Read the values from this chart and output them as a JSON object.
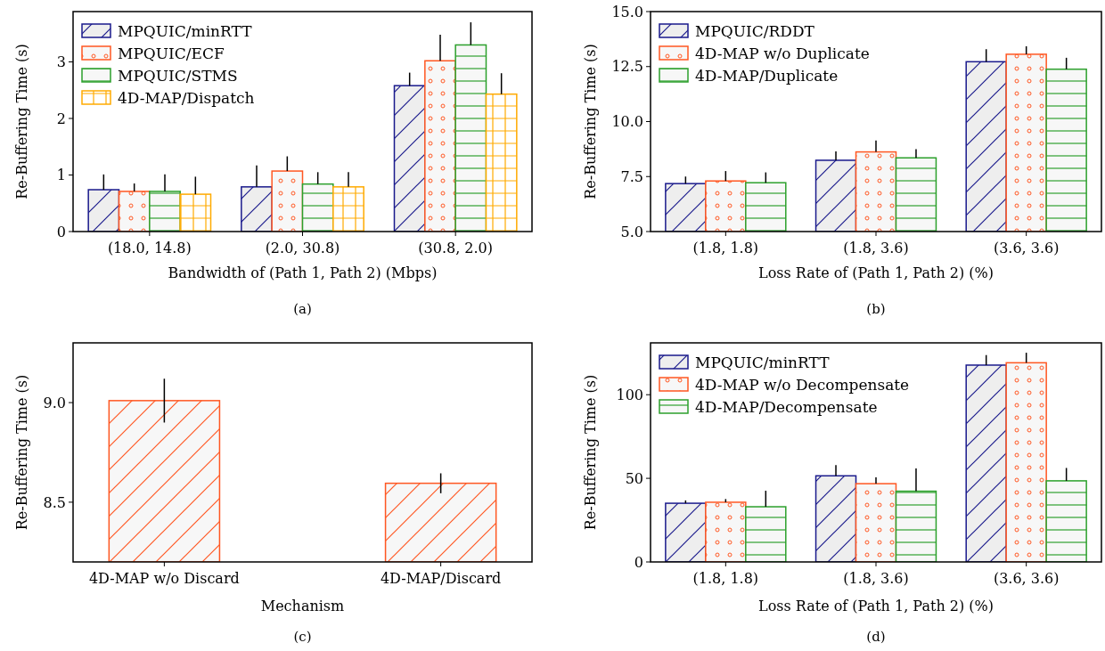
{
  "chart_data": [
    {
      "type": "bar",
      "xlabel": "Bandwidth of (Path 1, Path 2) (Mbps)",
      "ylabel": "Re-Buffering Time (s)",
      "annotations": [
        "(a)"
      ],
      "categories": [
        "(18.0, 14.8)",
        "(2.0, 30.8)",
        "(30.8, 2.0)"
      ],
      "ylim": [
        0,
        3.89
      ],
      "yticks": [
        0,
        1,
        2,
        3
      ],
      "legend": "top left",
      "grid": false,
      "series": [
        {
          "name": "MPQUIC/minRTT",
          "color": "#1a1a8c",
          "values": [
            0.74,
            0.79,
            2.58
          ],
          "errors": [
            [
              0.74,
              1.01
            ],
            [
              0.79,
              1.17
            ],
            [
              2.58,
              2.81
            ]
          ]
        },
        {
          "name": "MPQUIC/ECF",
          "color": "#ff5722",
          "values": [
            0.71,
            1.07,
            3.02
          ],
          "errors": [
            [
              0.71,
              0.85
            ],
            [
              1.07,
              1.33
            ],
            [
              3.02,
              3.48
            ]
          ]
        },
        {
          "name": "MPQUIC/STMS",
          "color": "#2ca02c",
          "values": [
            0.71,
            0.84,
            3.3
          ],
          "errors": [
            [
              0.71,
              1.01
            ],
            [
              0.84,
              1.05
            ],
            [
              3.3,
              3.7
            ]
          ]
        },
        {
          "name": "4D-MAP/Dispatch",
          "color": "#ffaa00",
          "values": [
            0.66,
            0.79,
            2.43
          ],
          "errors": [
            [
              0.66,
              0.97
            ],
            [
              0.79,
              1.05
            ],
            [
              2.43,
              2.8
            ]
          ]
        }
      ]
    },
    {
      "type": "bar",
      "xlabel": "Loss Rate of (Path 1, Path 2) (%)",
      "ylabel": "Re-Buffering Time (s)",
      "annotations": [
        "(b)"
      ],
      "categories": [
        "(1.8, 1.8)",
        "(1.8, 3.6)",
        "(3.6, 3.6)"
      ],
      "ylim": [
        5,
        15
      ],
      "yticks": [
        {
          "value": 5,
          "label": "5.0"
        },
        {
          "value": 7.5,
          "label": "7.5"
        },
        {
          "value": 10,
          "label": "10.0"
        },
        {
          "value": 12.5,
          "label": "12.5"
        },
        {
          "value": 15,
          "label": "15.0"
        }
      ],
      "legend": "top left",
      "grid": false,
      "series": [
        {
          "name": "MPQUIC/RDDT",
          "color": "#1a1a8c",
          "values": [
            7.18,
            8.24,
            12.72
          ],
          "errors": [
            [
              7.18,
              7.5
            ],
            [
              8.24,
              8.64
            ],
            [
              12.72,
              13.29
            ]
          ]
        },
        {
          "name": "4D-MAP w/o Duplicate",
          "color": "#ff5722",
          "values": [
            7.3,
            8.62,
            13.06
          ],
          "errors": [
            [
              7.3,
              7.75
            ],
            [
              8.62,
              9.14
            ],
            [
              13.06,
              13.42
            ]
          ]
        },
        {
          "name": "4D-MAP/Duplicate",
          "color": "#2ca02c",
          "values": [
            7.22,
            8.35,
            12.38
          ],
          "errors": [
            [
              7.22,
              7.69
            ],
            [
              8.35,
              8.75
            ],
            [
              12.38,
              12.9
            ]
          ]
        }
      ]
    },
    {
      "type": "bar",
      "xlabel": "Mechanism",
      "ylabel": "Re-Buffering Time (s)",
      "annotations": [
        "(c)"
      ],
      "categories": [
        "4D-MAP w/o Discard",
        "4D-MAP/Discard"
      ],
      "ylim": [
        8.2,
        9.3
      ],
      "yticks": [
        {
          "value": 8.5,
          "label": "8.5"
        },
        {
          "value": 9,
          "label": "9.0"
        }
      ],
      "grid": false,
      "series": [
        {
          "color": "#ff5722",
          "values": [
            9.01,
            8.595
          ],
          "errors": [
            0.11,
            0.05
          ]
        }
      ]
    },
    {
      "type": "bar",
      "xlabel": "Loss Rate of (Path 1, Path 2) (%)",
      "ylabel": "Re-Buffering Time (s)",
      "annotations": [
        "(d)"
      ],
      "categories": [
        "(1.8, 1.8)",
        "(1.8, 3.6)",
        "(3.6, 3.6)"
      ],
      "ylim": [
        0,
        131
      ],
      "yticks": [
        0,
        50,
        100
      ],
      "legend": "top left",
      "grid": false,
      "series": [
        {
          "name": "MPQUIC/minRTT",
          "color": "#1a1a8c",
          "values": [
            35.1,
            51.5,
            117.7
          ],
          "errors": [
            [
              35.1,
              36.8
            ],
            [
              51.5,
              57.9
            ],
            [
              117.7,
              123.7
            ]
          ]
        },
        {
          "name": "4D-MAP w/o Decompensate",
          "color": "#ff5722",
          "values": [
            35.7,
            46.8,
            119.1
          ],
          "errors": [
            [
              35.7,
              37.6
            ],
            [
              46.8,
              50.6
            ],
            [
              119.1,
              125.1
            ]
          ]
        },
        {
          "name": "4D-MAP/Decompensate",
          "color": "#2ca02c",
          "values": [
            33,
            42.3,
            48.5
          ],
          "errors": [
            [
              33,
              42.6
            ],
            [
              42.3,
              55.9
            ],
            [
              48.5,
              56.2
            ]
          ]
        }
      ]
    }
  ]
}
